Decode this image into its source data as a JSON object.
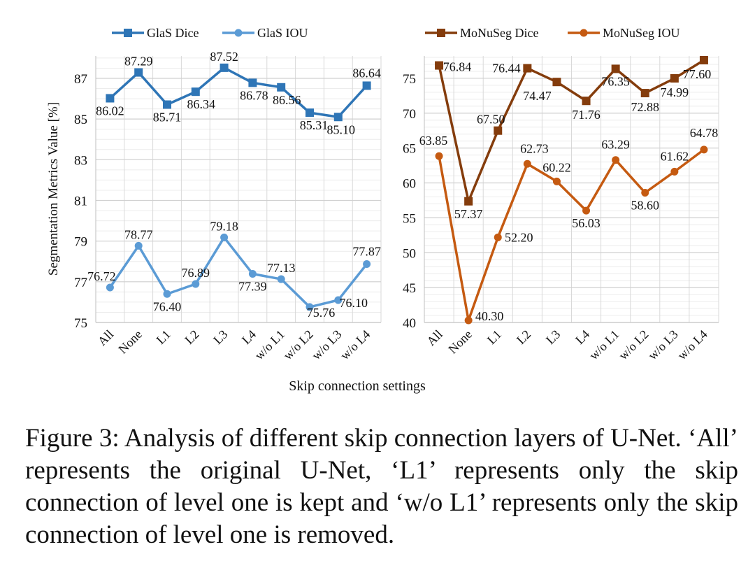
{
  "chart_data": [
    {
      "type": "line",
      "categories": [
        "All",
        "None",
        "L1",
        "L2",
        "L3",
        "L4",
        "w/o L1",
        "w/o L2",
        "w/o L3",
        "w/o L4"
      ],
      "ylim": [
        75,
        88.1
      ],
      "yticks": [
        75,
        77,
        79,
        81,
        83,
        85,
        87
      ],
      "ylabel": "Segmentation Metrics Value [%]",
      "grid": true,
      "legend": "top",
      "series": [
        {
          "name": "GlaS Dice",
          "marker": "square",
          "color": "#2E75B6",
          "values": [
            86.02,
            87.29,
            85.71,
            86.34,
            87.52,
            86.78,
            86.56,
            85.31,
            85.1,
            86.64
          ],
          "labels": [
            "86.02",
            "87.29",
            "85.71",
            "86.34",
            "87.52",
            "86.78",
            "86.56",
            "85.31",
            "85.10",
            "86.64"
          ]
        },
        {
          "name": "GlaS IOU",
          "marker": "circle",
          "color": "#5B9BD5",
          "values": [
            76.72,
            78.77,
            76.4,
            76.89,
            79.18,
            77.39,
            77.13,
            75.76,
            76.1,
            77.87
          ],
          "labels": [
            "76.72",
            "78.77",
            "76.40",
            "76.89",
            "79.18",
            "77.39",
            "77.13",
            "75.76",
            "76.10",
            "77.87"
          ]
        }
      ]
    },
    {
      "type": "line",
      "categories": [
        "All",
        "None",
        "L1",
        "L2",
        "L3",
        "L4",
        "w/o L1",
        "w/o L2",
        "w/o L3",
        "w/o L4"
      ],
      "ylim": [
        40,
        78.2
      ],
      "yticks": [
        40,
        45,
        50,
        55,
        60,
        65,
        70,
        75
      ],
      "grid": true,
      "legend": "top",
      "series": [
        {
          "name": "MoNuSeg Dice",
          "marker": "square",
          "color": "#843C0C",
          "values": [
            76.84,
            57.37,
            67.5,
            76.44,
            74.47,
            71.76,
            76.35,
            72.88,
            74.99,
            77.6
          ],
          "labels": [
            "76.84",
            "57.37",
            "67.50",
            "76.44",
            "74.47",
            "71.76",
            "76.35",
            "72.88",
            "74.99",
            "77.60"
          ]
        },
        {
          "name": "MoNuSeg IOU",
          "marker": "circle",
          "color": "#C55A11",
          "values": [
            63.85,
            40.3,
            52.2,
            62.73,
            60.22,
            56.03,
            63.29,
            58.6,
            61.62,
            64.78
          ],
          "labels": [
            "63.85",
            "40.30",
            "52.20",
            "62.73",
            "60.22",
            "56.03",
            "63.29",
            "58.60",
            "61.62",
            "64.78"
          ]
        }
      ]
    }
  ],
  "xlabel": "Skip connection settings",
  "caption": "Figure 3: Analysis of different skip connection layers of U-Net. ‘All’ represents the original U-Net, ‘L1’ represents only the skip connection of level one is kept and ‘w/o L1’ represents only the skip connection of level one is removed."
}
